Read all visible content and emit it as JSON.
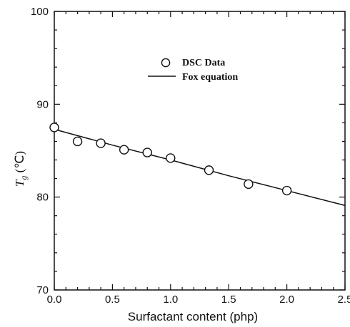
{
  "chart_data": {
    "type": "scatter",
    "xlabel": "Surfactant content (php)",
    "ylabel_main": "T",
    "ylabel_sub": "g",
    "ylabel_unit": " (℃)",
    "xlim": [
      0,
      2.5
    ],
    "ylim": [
      70,
      100
    ],
    "x_ticks": [
      0.0,
      0.5,
      1.0,
      1.5,
      2.0,
      2.5
    ],
    "x_tick_labels": [
      "0.0",
      "0.5",
      "1.0",
      "1.5",
      "2.0",
      "2.5"
    ],
    "y_ticks": [
      70,
      80,
      90,
      100
    ],
    "y_tick_labels": [
      "70",
      "80",
      "90",
      "100"
    ],
    "grid": false,
    "legend_position": "upper-center",
    "series": [
      {
        "name": "DSC Data",
        "kind": "markers",
        "marker": "open-circle",
        "x": [
          0.0,
          0.2,
          0.4,
          0.6,
          0.8,
          1.0,
          1.33,
          1.67,
          2.0
        ],
        "y": [
          87.5,
          86.0,
          85.8,
          85.1,
          84.8,
          84.2,
          82.9,
          81.4,
          80.7
        ]
      },
      {
        "name": "Fox equation",
        "kind": "line",
        "x": [
          0.0,
          0.5,
          1.0,
          1.5,
          2.0,
          2.5
        ],
        "y": [
          87.3,
          85.6,
          84.0,
          82.3,
          80.7,
          79.1
        ]
      }
    ]
  }
}
